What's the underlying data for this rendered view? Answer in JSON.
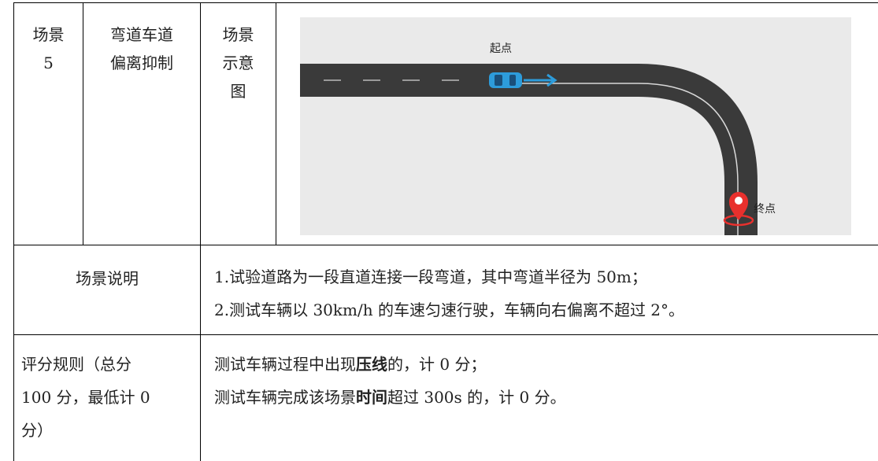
{
  "row1": {
    "scene_no_label": "场景",
    "scene_no_value": "5",
    "scene_name_line1": "弯道车道",
    "scene_name_line2": "偏离抑制",
    "diagram_label_line1": "场景",
    "diagram_label_line2": "示意",
    "diagram_label_line3": "图",
    "diagram": {
      "start_label": "起点",
      "end_label": "终点",
      "car_color": "#2d9cdb",
      "arrow_color": "#2d9cdb",
      "marker_color": "#e8302d",
      "road_color": "#3a3a3a"
    }
  },
  "row2": {
    "label": "场景说明",
    "line1": "1.试验道路为一段直道连接一段弯道，其中弯道半径为 50m；",
    "line2": "2.测试车辆以 30km/h 的车速匀速行驶，车辆向右偏离不超过 2°。"
  },
  "row3": {
    "label_line1": "评分规则（总分",
    "label_line2": "100 分，最低计 0",
    "label_line3": "分）",
    "rule1_pre": "测试车辆过程中出现",
    "rule1_bold": "压线",
    "rule1_post": "的，计 0 分；",
    "rule2_pre": "测试车辆完成该场景",
    "rule2_bold": "时间",
    "rule2_post": "超过 300s 的，计 0 分。"
  }
}
